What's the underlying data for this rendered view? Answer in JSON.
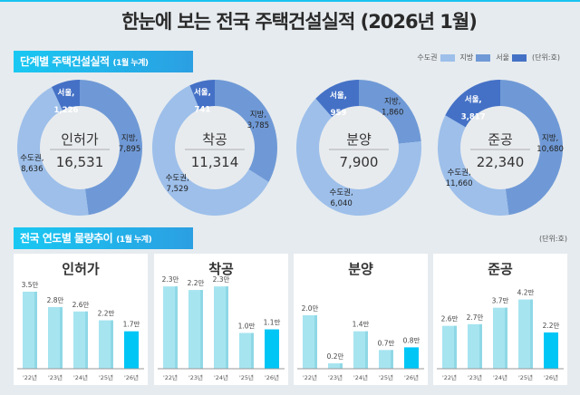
{
  "title": "한눈에 보는 전국 주택건설실적 (2026년 1월)",
  "section1": {
    "label": "단계별 주택건설실적",
    "sub": "(1월 누계)"
  },
  "legend": [
    {
      "name": "수도권",
      "color": "#9dbfea"
    },
    {
      "name": "지방",
      "color": "#6f99d6"
    },
    {
      "name": "서울",
      "color": "#4471c6"
    }
  ],
  "unit": "(단위:호)",
  "section2": {
    "label": "전국 연도별 물량추이",
    "sub": "(1월 누계)"
  },
  "chart_data": [
    {
      "type": "pie",
      "name": "인허가",
      "total": "16,531",
      "labels": {
        "seoul": "1,226",
        "capital": "8,636",
        "local": "7,895"
      },
      "values": {
        "local": 7895,
        "capital": 8636,
        "seoul": 1226
      }
    },
    {
      "type": "pie",
      "name": "착공",
      "total": "11,314",
      "labels": {
        "seoul": "741",
        "capital": "7,529",
        "local": "3,785"
      },
      "values": {
        "local": 3785,
        "capital": 7529,
        "seoul": 741
      }
    },
    {
      "type": "pie",
      "name": "분양",
      "total": "7,900",
      "labels": {
        "seoul": "959",
        "capital": "6,040",
        "local": "1,860"
      },
      "values": {
        "local": 1860,
        "capital": 6040,
        "seoul": 959
      }
    },
    {
      "type": "pie",
      "name": "준공",
      "total": "22,340",
      "labels": {
        "seoul": "3,817",
        "capital": "11,660",
        "local": "10,680"
      },
      "values": {
        "local": 10680,
        "capital": 11660,
        "seoul": 3817
      }
    },
    {
      "type": "bar",
      "title": "인허가",
      "categories": [
        "'22년",
        "'23년",
        "'24년",
        "'25년",
        "'26년"
      ],
      "values": [
        3.5,
        2.8,
        2.6,
        2.2,
        1.7
      ],
      "labels": [
        "3.5만",
        "2.8만",
        "2.6만",
        "2.2만",
        "1.7만"
      ]
    },
    {
      "type": "bar",
      "title": "착공",
      "categories": [
        "'22년",
        "'23년",
        "'24년",
        "'25년",
        "'26년"
      ],
      "values": [
        2.3,
        2.2,
        2.3,
        1.0,
        1.1
      ],
      "labels": [
        "2.3만",
        "2.2만",
        "2.3만",
        "1.0만",
        "1.1만"
      ]
    },
    {
      "type": "bar",
      "title": "분양",
      "categories": [
        "'22년",
        "'23년",
        "'24년",
        "'25년",
        "'26년"
      ],
      "values": [
        2.0,
        0.2,
        1.4,
        0.7,
        0.8
      ],
      "labels": [
        "2.0만",
        "0.2만",
        "1.4만",
        "0.7만",
        "0.8만"
      ]
    },
    {
      "type": "bar",
      "title": "준공",
      "categories": [
        "'22년",
        "'23년",
        "'24년",
        "'25년",
        "'26년"
      ],
      "values": [
        2.6,
        2.7,
        3.7,
        4.2,
        2.2
      ],
      "labels": [
        "2.6만",
        "2.7만",
        "3.7만",
        "4.2만",
        "2.2만"
      ]
    }
  ],
  "labels": {
    "seoul": "서울,",
    "capital": "수도권,",
    "local": "지방,"
  },
  "colors": {
    "bar": "#a6e4f0",
    "bar_current": "#00c6f6",
    "inner": "#e8ebee"
  }
}
